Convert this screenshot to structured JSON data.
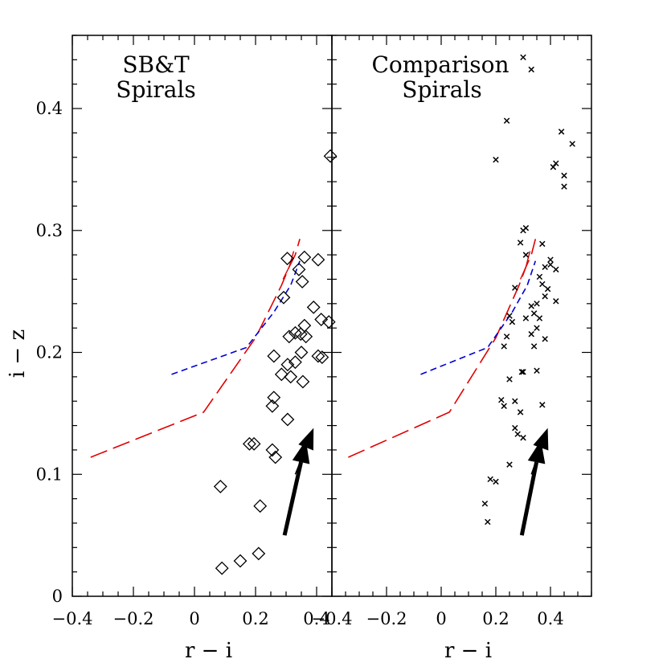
{
  "chart_data": {
    "type": "scatter",
    "ylabel": "i − z",
    "ylim": [
      0,
      0.46
    ],
    "colors": {
      "axis": "#000000",
      "red_track": "#e00000",
      "blue_track": "#0000d0",
      "arrow": "#000000"
    },
    "panels": [
      {
        "title_lines": [
          "SB&T",
          "Spirals"
        ],
        "xlabel": "r − i",
        "xlim": [
          -0.4,
          0.45
        ],
        "xticklabels": [
          "−0.4",
          "−0.2",
          "0",
          "0.2",
          "0.4"
        ],
        "yticklabels": [
          "0",
          "0.1",
          "0.2",
          "0.3",
          "0.4"
        ],
        "marker": "diamond",
        "points": [
          [
            0.445,
            0.361
          ],
          [
            0.304,
            0.277
          ],
          [
            0.36,
            0.278
          ],
          [
            0.405,
            0.276
          ],
          [
            0.342,
            0.268
          ],
          [
            0.353,
            0.258
          ],
          [
            0.292,
            0.245
          ],
          [
            0.39,
            0.237
          ],
          [
            0.415,
            0.227
          ],
          [
            0.44,
            0.225
          ],
          [
            0.36,
            0.222
          ],
          [
            0.348,
            0.215
          ],
          [
            0.33,
            0.216
          ],
          [
            0.31,
            0.213
          ],
          [
            0.365,
            0.213
          ],
          [
            0.35,
            0.2
          ],
          [
            0.405,
            0.197
          ],
          [
            0.418,
            0.196
          ],
          [
            0.26,
            0.197
          ],
          [
            0.33,
            0.192
          ],
          [
            0.305,
            0.19
          ],
          [
            0.285,
            0.182
          ],
          [
            0.315,
            0.18
          ],
          [
            0.355,
            0.176
          ],
          [
            0.26,
            0.163
          ],
          [
            0.255,
            0.156
          ],
          [
            0.305,
            0.145
          ],
          [
            0.195,
            0.125
          ],
          [
            0.18,
            0.125
          ],
          [
            0.255,
            0.12
          ],
          [
            0.265,
            0.114
          ],
          [
            0.085,
            0.09
          ],
          [
            0.215,
            0.074
          ],
          [
            0.21,
            0.035
          ],
          [
            0.15,
            0.029
          ],
          [
            0.09,
            0.023
          ]
        ],
        "red_track": [
          [
            -0.34,
            0.114
          ],
          [
            0.03,
            0.151
          ],
          [
            0.2,
            0.212
          ],
          [
            0.285,
            0.255
          ],
          [
            0.31,
            0.27
          ],
          [
            0.33,
            0.28
          ],
          [
            0.345,
            0.293
          ]
        ],
        "blue_track": [
          [
            -0.075,
            0.182
          ],
          [
            0.17,
            0.204
          ],
          [
            0.26,
            0.233
          ],
          [
            0.315,
            0.255
          ],
          [
            0.345,
            0.275
          ]
        ],
        "arrow_big": {
          "from": [
            0.295,
            0.05
          ],
          "to": [
            0.365,
            0.128
          ]
        },
        "arrow_small": {
          "from": [
            0.33,
            0.1
          ],
          "to": [
            0.39,
            0.138
          ]
        }
      },
      {
        "title_lines": [
          "Comparison",
          "Spirals"
        ],
        "xlabel": "r − i",
        "xlim": [
          -0.4,
          0.55
        ],
        "xticklabels": [
          "−0.4",
          "−0.2",
          "0",
          "0.2",
          "0.4"
        ],
        "marker": "cross",
        "points": [
          [
            0.3,
            0.442
          ],
          [
            0.33,
            0.432
          ],
          [
            0.24,
            0.39
          ],
          [
            0.44,
            0.381
          ],
          [
            0.48,
            0.371
          ],
          [
            0.2,
            0.358
          ],
          [
            0.42,
            0.355
          ],
          [
            0.41,
            0.352
          ],
          [
            0.45,
            0.345
          ],
          [
            0.45,
            0.336
          ],
          [
            0.31,
            0.302
          ],
          [
            0.3,
            0.3
          ],
          [
            0.29,
            0.29
          ],
          [
            0.37,
            0.289
          ],
          [
            0.31,
            0.28
          ],
          [
            0.4,
            0.276
          ],
          [
            0.4,
            0.272
          ],
          [
            0.38,
            0.27
          ],
          [
            0.42,
            0.268
          ],
          [
            0.36,
            0.262
          ],
          [
            0.37,
            0.256
          ],
          [
            0.39,
            0.252
          ],
          [
            0.27,
            0.253
          ],
          [
            0.38,
            0.246
          ],
          [
            0.35,
            0.24
          ],
          [
            0.42,
            0.242
          ],
          [
            0.33,
            0.238
          ],
          [
            0.34,
            0.232
          ],
          [
            0.36,
            0.228
          ],
          [
            0.31,
            0.228
          ],
          [
            0.26,
            0.225
          ],
          [
            0.25,
            0.23
          ],
          [
            0.35,
            0.22
          ],
          [
            0.33,
            0.215
          ],
          [
            0.24,
            0.213
          ],
          [
            0.38,
            0.211
          ],
          [
            0.34,
            0.205
          ],
          [
            0.23,
            0.205
          ],
          [
            0.3,
            0.184
          ],
          [
            0.295,
            0.184
          ],
          [
            0.35,
            0.185
          ],
          [
            0.25,
            0.178
          ],
          [
            0.22,
            0.161
          ],
          [
            0.27,
            0.16
          ],
          [
            0.23,
            0.156
          ],
          [
            0.37,
            0.157
          ],
          [
            0.29,
            0.151
          ],
          [
            0.27,
            0.138
          ],
          [
            0.28,
            0.133
          ],
          [
            0.3,
            0.13
          ],
          [
            0.25,
            0.108
          ],
          [
            0.18,
            0.096
          ],
          [
            0.2,
            0.094
          ],
          [
            0.16,
            0.076
          ],
          [
            0.17,
            0.061
          ]
        ],
        "red_track": [
          [
            -0.34,
            0.114
          ],
          [
            0.03,
            0.151
          ],
          [
            0.2,
            0.212
          ],
          [
            0.285,
            0.255
          ],
          [
            0.31,
            0.27
          ],
          [
            0.33,
            0.28
          ],
          [
            0.345,
            0.293
          ]
        ],
        "blue_track": [
          [
            -0.075,
            0.182
          ],
          [
            0.17,
            0.204
          ],
          [
            0.26,
            0.233
          ],
          [
            0.315,
            0.255
          ],
          [
            0.345,
            0.275
          ]
        ],
        "arrow_big": {
          "from": [
            0.295,
            0.05
          ],
          "to": [
            0.365,
            0.128
          ]
        },
        "arrow_small": {
          "from": [
            0.33,
            0.1
          ],
          "to": [
            0.39,
            0.138
          ]
        }
      }
    ]
  }
}
